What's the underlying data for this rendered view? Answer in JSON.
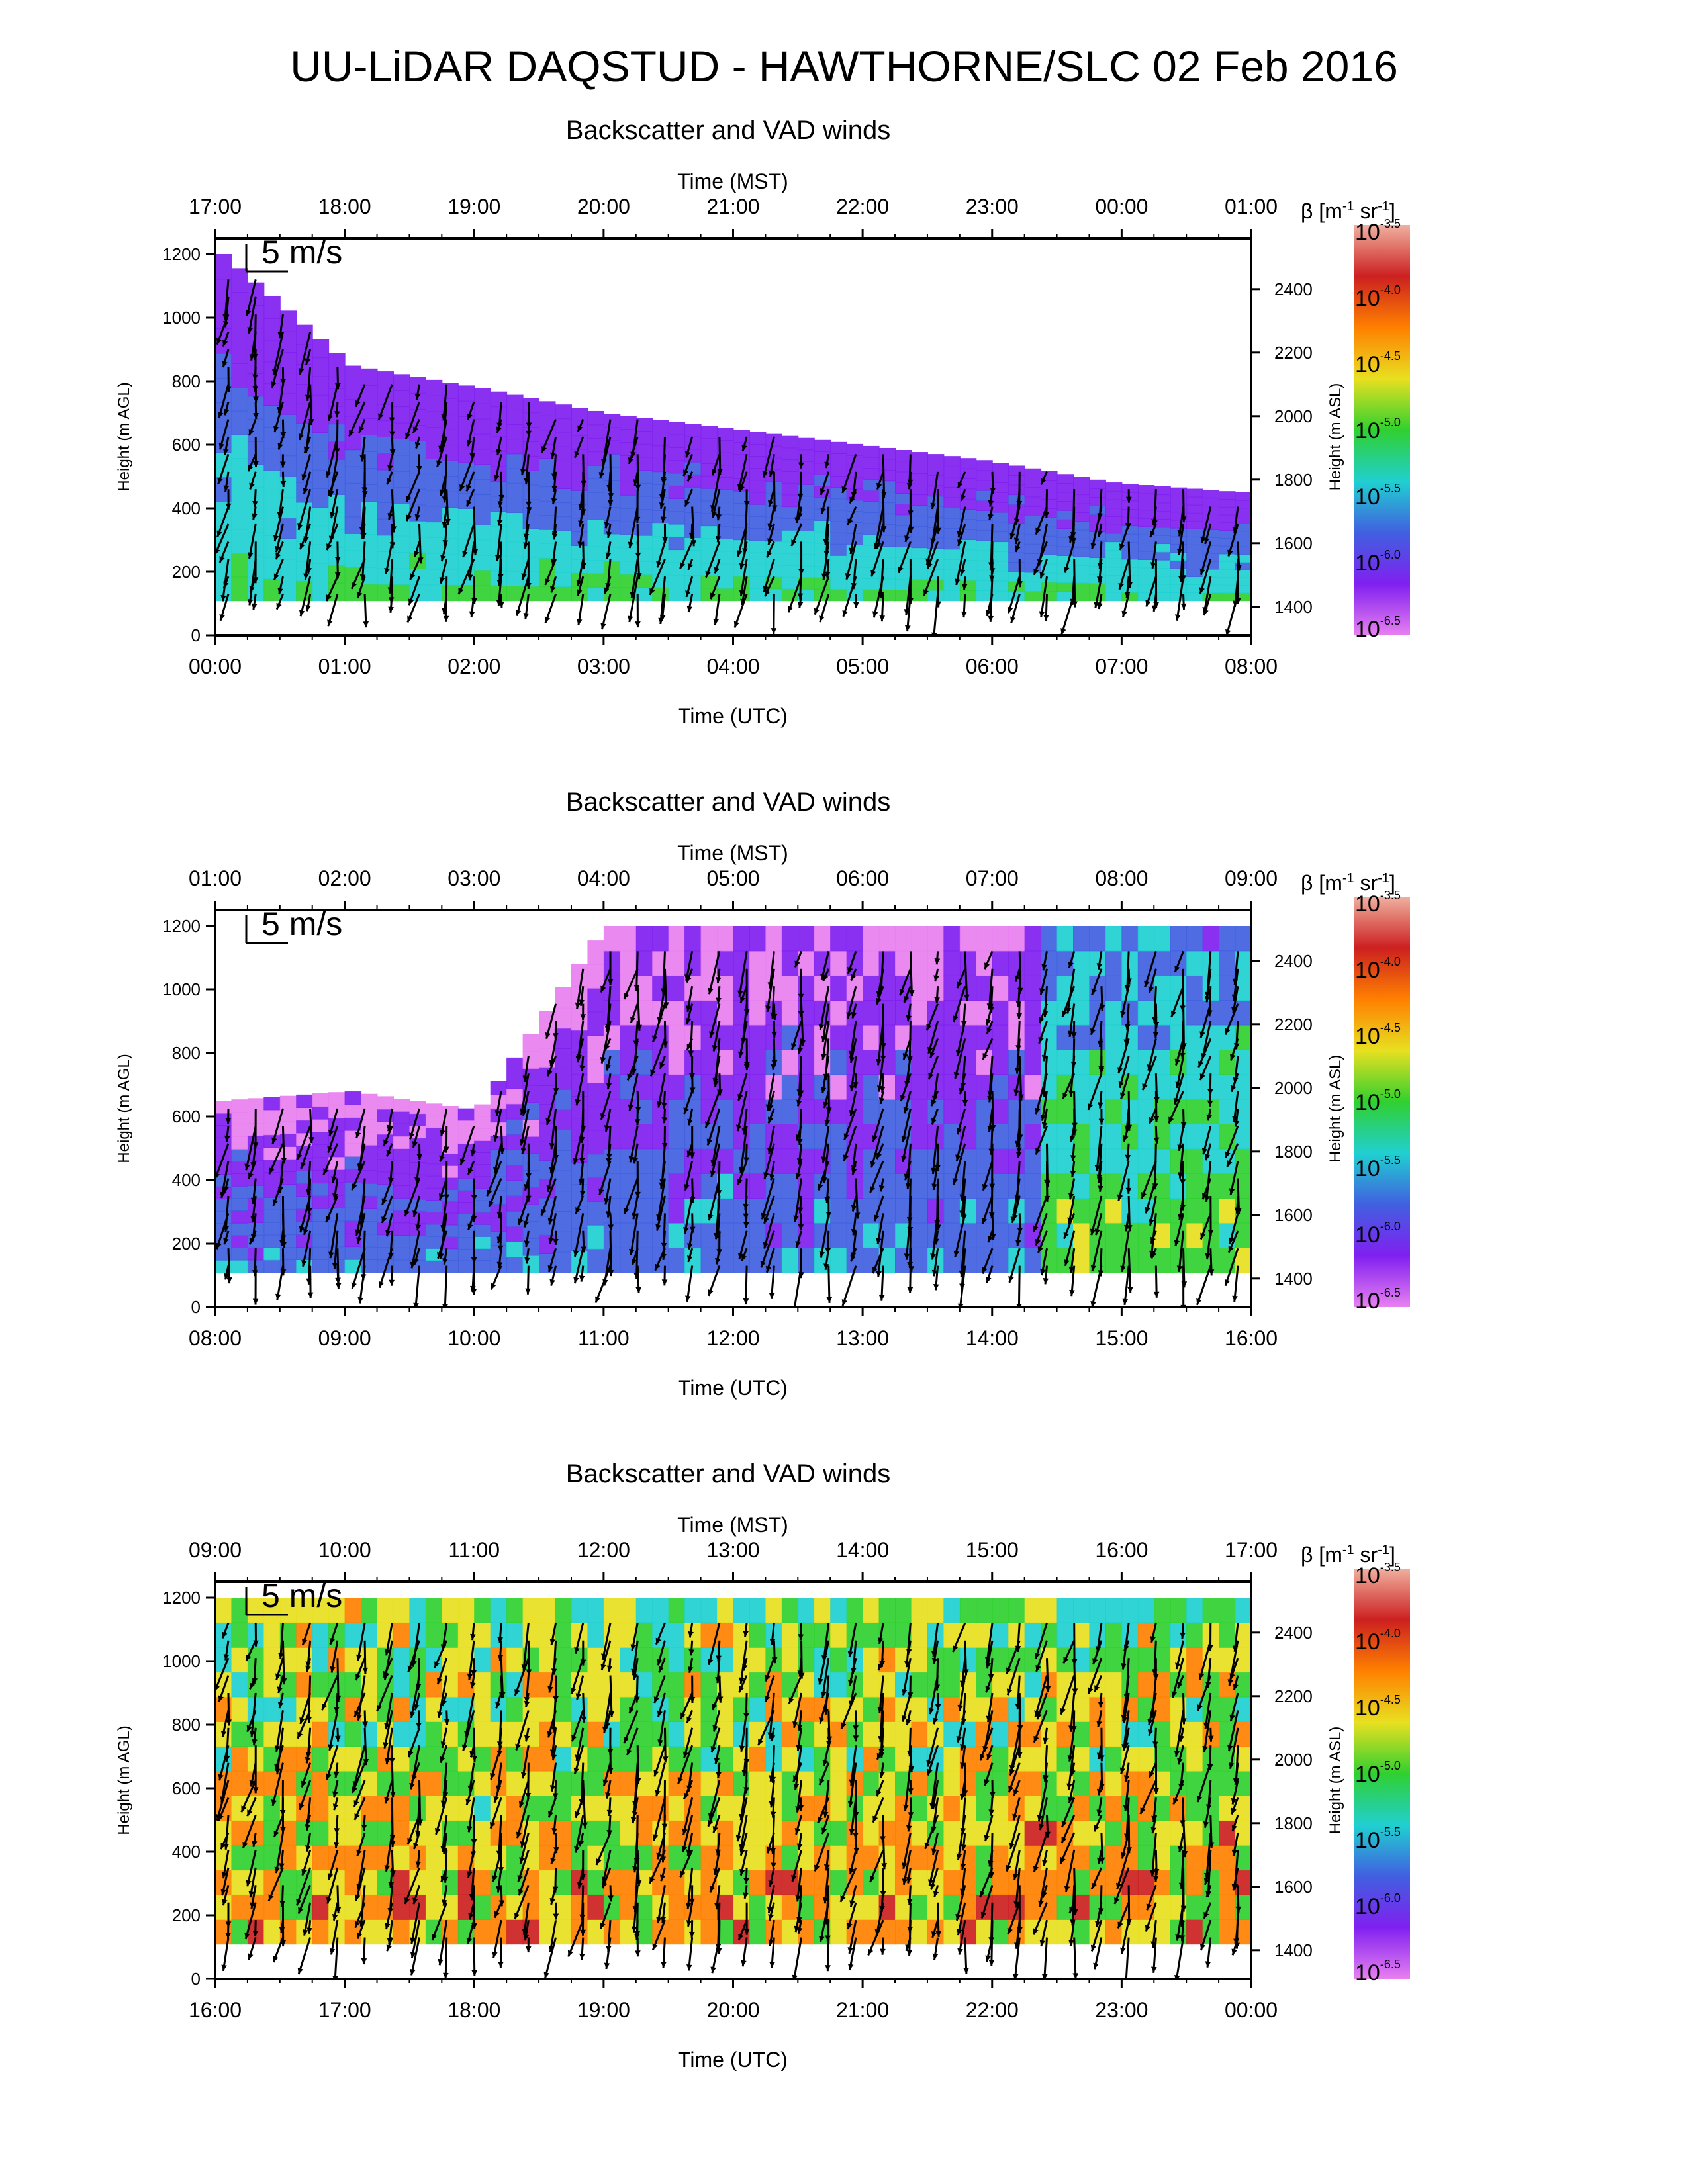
{
  "page": {
    "title": "UU-LiDAR DAQSTUD - HAWTHORNE/SLC 02 Feb 2016"
  },
  "colorbar": {
    "label_beta": "β",
    "label_unit": "[m",
    "label_exp1": "-1",
    "label_sr": " sr",
    "label_exp2": "-1",
    "label_close": "]",
    "ticks": [
      {
        "base": "10",
        "exp": "-3.5"
      },
      {
        "base": "10",
        "exp": "-4.0"
      },
      {
        "base": "10",
        "exp": "-4.5"
      },
      {
        "base": "10",
        "exp": "-5.0"
      },
      {
        "base": "10",
        "exp": "-5.5"
      },
      {
        "base": "10",
        "exp": "-6.0"
      },
      {
        "base": "10",
        "exp": "-6.5"
      }
    ],
    "colors": [
      "#f0b0a0",
      "#cc2020",
      "#ff8000",
      "#e8e020",
      "#30d030",
      "#20d0d0",
      "#4060e0",
      "#8020f0",
      "#e880f0"
    ]
  },
  "chart_data": [
    {
      "type": "heatmap",
      "title": "Backscatter and VAD winds",
      "top_xlabel": "Time (MST)",
      "xlabel": "Time (UTC)",
      "ylabel": "Height (m AGL)",
      "y2label": "Height (m ASL)",
      "top_ticks": [
        "17:00",
        "18:00",
        "19:00",
        "20:00",
        "21:00",
        "22:00",
        "23:00",
        "00:00",
        "01:00"
      ],
      "bottom_ticks": [
        "00:00",
        "01:00",
        "02:00",
        "03:00",
        "04:00",
        "05:00",
        "06:00",
        "07:00",
        "08:00"
      ],
      "yticks": [
        0,
        200,
        400,
        600,
        800,
        1000,
        1200
      ],
      "y2ticks": [
        1400,
        1600,
        1800,
        2000,
        2200,
        2400
      ],
      "ylim": [
        0,
        1250
      ],
      "y2lim": [
        1310,
        2560
      ],
      "wind_scale_label": "5 m/s",
      "series": [
        {
          "x": [
            "00:00",
            "01:00",
            "02:00",
            "03:00",
            "04:00",
            "05:00",
            "06:00",
            "07:00",
            "08:00"
          ],
          "boundary_layer_top_m": [
            1200,
            850,
            780,
            700,
            650,
            600,
            550,
            480,
            450
          ]
        }
      ]
    },
    {
      "type": "heatmap",
      "title": "Backscatter and VAD winds",
      "top_xlabel": "Time (MST)",
      "xlabel": "Time (UTC)",
      "ylabel": "Height (m AGL)",
      "y2label": "Height (m ASL)",
      "top_ticks": [
        "01:00",
        "02:00",
        "03:00",
        "04:00",
        "05:00",
        "06:00",
        "07:00",
        "08:00",
        "09:00"
      ],
      "bottom_ticks": [
        "08:00",
        "09:00",
        "10:00",
        "11:00",
        "12:00",
        "13:00",
        "14:00",
        "15:00",
        "16:00"
      ],
      "yticks": [
        0,
        200,
        400,
        600,
        800,
        1000,
        1200
      ],
      "y2ticks": [
        1400,
        1600,
        1800,
        2000,
        2200,
        2400
      ],
      "ylim": [
        0,
        1250
      ],
      "y2lim": [
        1310,
        2560
      ],
      "wind_scale_label": "5 m/s",
      "series": [
        {
          "x": [
            "08:00",
            "09:00",
            "10:00",
            "11:00",
            "12:00",
            "13:00",
            "14:00",
            "15:00",
            "16:00"
          ],
          "boundary_layer_top_m": [
            650,
            680,
            620,
            1200,
            1200,
            1200,
            1200,
            1200,
            1200
          ]
        }
      ]
    },
    {
      "type": "heatmap",
      "title": "Backscatter and VAD winds",
      "top_xlabel": "Time (MST)",
      "xlabel": "Time (UTC)",
      "ylabel": "Height (m AGL)",
      "y2label": "Height (m ASL)",
      "top_ticks": [
        "09:00",
        "10:00",
        "11:00",
        "12:00",
        "13:00",
        "14:00",
        "15:00",
        "16:00",
        "17:00"
      ],
      "bottom_ticks": [
        "16:00",
        "17:00",
        "18:00",
        "19:00",
        "20:00",
        "21:00",
        "22:00",
        "23:00",
        "00:00"
      ],
      "yticks": [
        0,
        200,
        400,
        600,
        800,
        1000,
        1200
      ],
      "y2ticks": [
        1400,
        1600,
        1800,
        2000,
        2200,
        2400
      ],
      "ylim": [
        0,
        1250
      ],
      "y2lim": [
        1310,
        2560
      ],
      "wind_scale_label": "5 m/s",
      "series": [
        {
          "x": [
            "16:00",
            "17:00",
            "18:00",
            "19:00",
            "20:00",
            "21:00",
            "22:00",
            "23:00",
            "00:00"
          ],
          "boundary_layer_top_m": [
            1200,
            1200,
            1200,
            1200,
            1200,
            1200,
            1200,
            1200,
            1200
          ]
        }
      ]
    }
  ]
}
